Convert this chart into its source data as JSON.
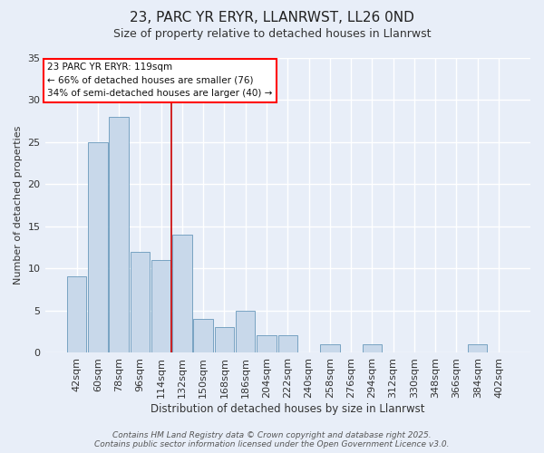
{
  "title": "23, PARC YR ERYR, LLANRWST, LL26 0ND",
  "subtitle": "Size of property relative to detached houses in Llanrwst",
  "xlabel": "Distribution of detached houses by size in Llanrwst",
  "ylabel": "Number of detached properties",
  "footer": "Contains HM Land Registry data © Crown copyright and database right 2025.\nContains public sector information licensed under the Open Government Licence v3.0.",
  "categories": [
    "42sqm",
    "60sqm",
    "78sqm",
    "96sqm",
    "114sqm",
    "132sqm",
    "150sqm",
    "168sqm",
    "186sqm",
    "204sqm",
    "222sqm",
    "240sqm",
    "258sqm",
    "276sqm",
    "294sqm",
    "312sqm",
    "330sqm",
    "348sqm",
    "366sqm",
    "384sqm",
    "402sqm"
  ],
  "values": [
    9,
    25,
    28,
    12,
    11,
    14,
    4,
    3,
    5,
    2,
    2,
    0,
    1,
    0,
    1,
    0,
    0,
    0,
    0,
    1,
    0
  ],
  "bar_color": "#c8d8ea",
  "bar_edge_color": "#6899bb",
  "bg_color": "#e8eef8",
  "grid_color": "#ffffff",
  "redline_index": 4,
  "annotation_line1": "23 PARC YR ERYR: 119sqm",
  "annotation_line2": "← 66% of detached houses are smaller (76)",
  "annotation_line3": "34% of semi-detached houses are larger (40) →",
  "annotation_box_facecolor": "#ffffff",
  "annotation_box_edgecolor": "red",
  "ylim_max": 35,
  "yticks": [
    0,
    5,
    10,
    15,
    20,
    25,
    30,
    35
  ]
}
